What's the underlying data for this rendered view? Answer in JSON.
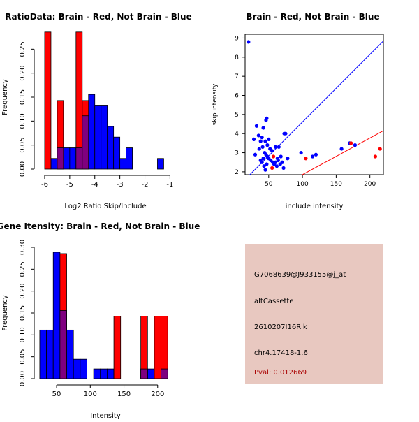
{
  "colors": {
    "red": "#ff0000",
    "blue": "#0000ff",
    "overlap": "#7f007f",
    "info_bg": "#e8c8c0",
    "pval": "#aa0000"
  },
  "chart_data": [
    {
      "id": "ratio-hist",
      "type": "bar",
      "title": "RatioData: Brain - Red, Not Brain - Blue",
      "xlabel": "Log2 Ratio Skip/Include",
      "ylabel": "Frequency",
      "xlim": [
        -6.25,
        -0.9
      ],
      "ylim": [
        0,
        0.3
      ],
      "xticks": [
        -6,
        -5,
        -4,
        -3,
        -2,
        -1
      ],
      "yticks": [
        0.0,
        0.05,
        0.1,
        0.15,
        0.2,
        0.25
      ],
      "ytick_labels": [
        "0.00",
        "0.05",
        "0.10",
        "0.15",
        "0.20",
        "0.25"
      ],
      "bin_width": 0.25,
      "series": [
        {
          "name": "Not Brain",
          "color": "blue",
          "bins": [
            {
              "start": -6.0,
              "value": 0.0
            },
            {
              "start": -5.75,
              "value": 0.0222
            },
            {
              "start": -5.5,
              "value": 0.0444
            },
            {
              "start": -5.25,
              "value": 0.0444
            },
            {
              "start": -5.0,
              "value": 0.0444
            },
            {
              "start": -4.75,
              "value": 0.0444
            },
            {
              "start": -4.5,
              "value": 0.1111
            },
            {
              "start": -4.25,
              "value": 0.1556
            },
            {
              "start": -4.0,
              "value": 0.1333
            },
            {
              "start": -3.75,
              "value": 0.1333
            },
            {
              "start": -3.5,
              "value": 0.0889
            },
            {
              "start": -3.25,
              "value": 0.0667
            },
            {
              "start": -3.0,
              "value": 0.0222
            },
            {
              "start": -2.75,
              "value": 0.0444
            },
            {
              "start": -1.5,
              "value": 0.0222
            }
          ]
        },
        {
          "name": "Brain",
          "color": "red",
          "bins": [
            {
              "start": -6.0,
              "value": 0.2857
            },
            {
              "start": -5.5,
              "value": 0.1429
            },
            {
              "start": -4.75,
              "value": 0.2857
            },
            {
              "start": -4.5,
              "value": 0.1429
            }
          ]
        }
      ]
    },
    {
      "id": "intensity-scatter",
      "type": "scatter",
      "title": "Brain - Red, Not Brain - Blue",
      "xlabel": "include intensity",
      "ylabel": "skip intensity",
      "xlim": [
        15,
        220
      ],
      "ylim": [
        1.85,
        9.2
      ],
      "xticks": [
        50,
        100,
        150,
        200
      ],
      "yticks": [
        2,
        3,
        4,
        5,
        6,
        7,
        8,
        9
      ],
      "lines": [
        {
          "name": "diagonal",
          "color": "blue",
          "x": [
            15,
            220
          ],
          "y": [
            1.6,
            8.85
          ]
        },
        {
          "name": "brain-fit",
          "color": "red",
          "x": [
            100,
            220
          ],
          "y": [
            1.85,
            4.15
          ]
        }
      ],
      "series": [
        {
          "name": "Not Brain",
          "color": "blue",
          "points": [
            [
              20,
              8.8
            ],
            [
              32,
              4.4
            ],
            [
              28,
              3.7
            ],
            [
              35,
              3.9
            ],
            [
              38,
              3.6
            ],
            [
              40,
              3.8
            ],
            [
              42,
              4.3
            ],
            [
              46,
              4.7
            ],
            [
              47,
              4.8
            ],
            [
              45,
              3.6
            ],
            [
              48,
              3.4
            ],
            [
              50,
              3.7
            ],
            [
              36,
              3.2
            ],
            [
              41,
              3.3
            ],
            [
              52,
              3.2
            ],
            [
              55,
              3.1
            ],
            [
              44,
              3.0
            ],
            [
              46,
              2.9
            ],
            [
              48,
              2.8
            ],
            [
              50,
              2.7
            ],
            [
              53,
              2.6
            ],
            [
              56,
              2.5
            ],
            [
              58,
              2.4
            ],
            [
              60,
              2.5
            ],
            [
              62,
              2.3
            ],
            [
              64,
              2.6
            ],
            [
              67,
              2.4
            ],
            [
              70,
              2.5
            ],
            [
              72,
              2.2
            ],
            [
              38,
              2.6
            ],
            [
              40,
              2.5
            ],
            [
              43,
              2.3
            ],
            [
              45,
              2.1
            ],
            [
              47,
              2.4
            ],
            [
              42,
              2.7
            ],
            [
              65,
              3.3
            ],
            [
              73,
              4.0
            ],
            [
              75,
              4.0
            ],
            [
              60,
              3.3
            ],
            [
              63,
              2.7
            ],
            [
              68,
              2.8
            ],
            [
              78,
              2.7
            ],
            [
              98,
              3.0
            ],
            [
              115,
              2.8
            ],
            [
              120,
              2.9
            ],
            [
              158,
              3.2
            ],
            [
              170,
              3.5
            ],
            [
              178,
              3.4
            ],
            [
              30,
              2.9
            ]
          ]
        },
        {
          "name": "Brain",
          "color": "red",
          "points": [
            [
              55,
              2.2
            ],
            [
              57,
              2.8
            ],
            [
              105,
              2.7
            ],
            [
              172,
              3.5
            ],
            [
              208,
              2.8
            ],
            [
              215,
              3.2
            ]
          ]
        }
      ]
    },
    {
      "id": "gene-hist",
      "type": "bar",
      "title": "Gene Itensity: Brain - Red, Not Brain - Blue",
      "xlabel": "Intensity",
      "ylabel": "Frequency",
      "xlim": [
        23,
        222
      ],
      "ylim": [
        0,
        0.3
      ],
      "xticks": [
        50,
        100,
        150,
        200
      ],
      "yticks": [
        0.0,
        0.05,
        0.1,
        0.15,
        0.2,
        0.25,
        0.3
      ],
      "ytick_labels": [
        "0.00",
        "0.05",
        "0.10",
        "0.15",
        "0.20",
        "0.25",
        "0.30"
      ],
      "bin_width": 10,
      "series": [
        {
          "name": "Not Brain",
          "color": "blue",
          "bins": [
            {
              "start": 25,
              "value": 0.1111
            },
            {
              "start": 35,
              "value": 0.1111
            },
            {
              "start": 45,
              "value": 0.2889
            },
            {
              "start": 55,
              "value": 0.1556
            },
            {
              "start": 65,
              "value": 0.1111
            },
            {
              "start": 75,
              "value": 0.0444
            },
            {
              "start": 85,
              "value": 0.0444
            },
            {
              "start": 105,
              "value": 0.0222
            },
            {
              "start": 115,
              "value": 0.0222
            },
            {
              "start": 125,
              "value": 0.0222
            },
            {
              "start": 175,
              "value": 0.0222
            },
            {
              "start": 185,
              "value": 0.0222
            },
            {
              "start": 205,
              "value": 0.0222
            }
          ]
        },
        {
          "name": "Brain",
          "color": "red",
          "bins": [
            {
              "start": 55,
              "value": 0.2857
            },
            {
              "start": 135,
              "value": 0.1429
            },
            {
              "start": 175,
              "value": 0.1429
            },
            {
              "start": 195,
              "value": 0.1429
            },
            {
              "start": 205,
              "value": 0.1429
            }
          ]
        }
      ]
    }
  ],
  "info_panel": {
    "probe_id": "G7068639@J933155@j_at",
    "event_type": "altCassette",
    "gene": "2610207I16Rik",
    "location": "chr4.17418-1.6",
    "pval": "Pval: 0.012669"
  }
}
